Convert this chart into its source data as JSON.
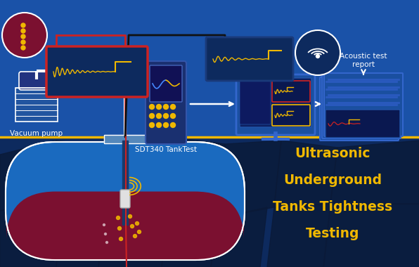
{
  "bg_top": "#1a52a8",
  "bg_bottom": "#0d2a5e",
  "yellow_line": "#f0b800",
  "yellow": "#f0b800",
  "white": "#ffffff",
  "red": "#cc2222",
  "dark_navy": "#0a1e3d",
  "mid_blue": "#1a4090",
  "tank_blue": "#1a6abf",
  "tank_liquid": "#7b1030",
  "crack_dark": "#0a1a40",
  "title_lines": [
    "Ultrasonic",
    "Underground",
    "Tanks Tightness",
    "Testing"
  ],
  "label_vacuum": "Vacuum pump",
  "label_sdt": "SDT340 TankTest",
  "label_acoustic": "Acoustic test\nreport"
}
